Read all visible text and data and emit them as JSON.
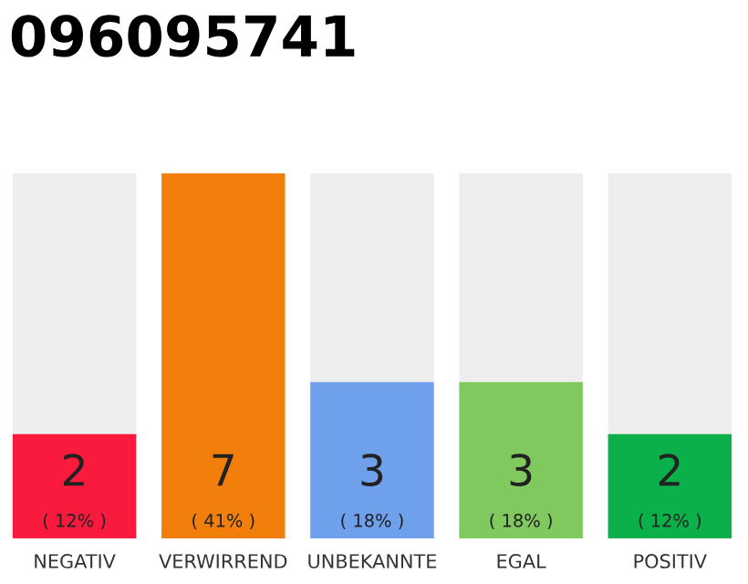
{
  "chart_data": {
    "type": "bar",
    "title": "096095741",
    "categories": [
      "NEGATIV",
      "VERWIRREND",
      "UNBEKANNTE",
      "EGAL",
      "POSITIV"
    ],
    "values": [
      2,
      7,
      3,
      3,
      2
    ],
    "colors": [
      "#fa1a3e",
      "#f27f0c",
      "#6ea0ec",
      "#80c95e",
      "#0cb04a"
    ],
    "value_labels": [
      "2\n( 12% )",
      "7\n( 41% )",
      "3\n( 18% )",
      "3\n( 18% )",
      "2\n( 12% )"
    ],
    "ylim": [
      0,
      7
    ],
    "tick_labels": "x",
    "grid": false,
    "legend": false
  }
}
